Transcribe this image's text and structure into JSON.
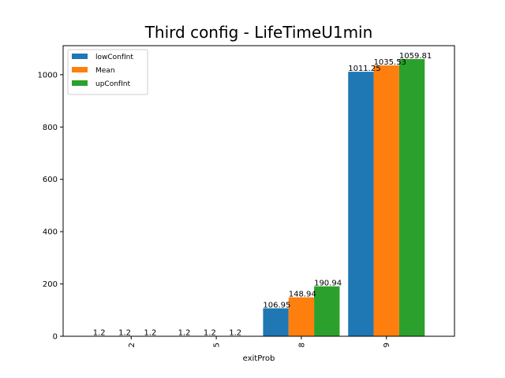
{
  "chart_data": {
    "type": "bar",
    "title": "Third config - LifeTimeU1min",
    "xlabel": "exitProb",
    "ylabel": "",
    "categories": [
      "2",
      "5",
      "8",
      "9"
    ],
    "series": [
      {
        "name": "lowConfInt",
        "color": "#1f77b4",
        "values": [
          1.2,
          1.2,
          106.95,
          1011.25
        ]
      },
      {
        "name": "Mean",
        "color": "#ff7f0e",
        "values": [
          1.2,
          1.2,
          148.94,
          1035.53
        ]
      },
      {
        "name": "upConfInt",
        "color": "#2ca02c",
        "values": [
          1.2,
          1.2,
          190.94,
          1059.81
        ]
      }
    ],
    "ylim": [
      0,
      1111
    ],
    "yticks": [
      0,
      200,
      400,
      600,
      800,
      1000
    ],
    "legend_position": "top-left",
    "grid": false
  }
}
